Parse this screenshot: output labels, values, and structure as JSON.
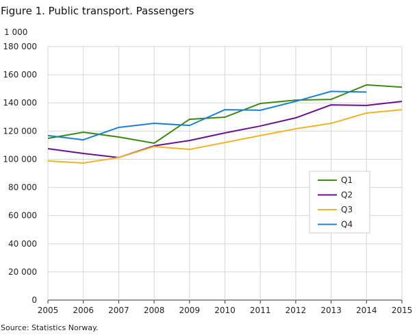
{
  "chart_data": {
    "type": "line",
    "title": "Figure 1. Public transport. Passengers",
    "unit_label": "1 000",
    "source": "Source: Statistics Norway.",
    "x": [
      2005,
      2006,
      2007,
      2008,
      2009,
      2010,
      2011,
      2012,
      2013,
      2014,
      2015
    ],
    "xlim": [
      2005,
      2015
    ],
    "ylim": [
      0,
      180000
    ],
    "yticks": [
      0,
      20000,
      40000,
      60000,
      80000,
      100000,
      120000,
      140000,
      160000,
      180000
    ],
    "ytick_labels": [
      "0",
      "20 000",
      "40 000",
      "60 000",
      "80 000",
      "100 000",
      "120 000",
      "140 000",
      "160 000",
      "180 000"
    ],
    "xtick_labels": [
      "2005",
      "2006",
      "2007",
      "2008",
      "2009",
      "2010",
      "2011",
      "2012",
      "2013",
      "2014",
      "2015"
    ],
    "grid": true,
    "legend_position": "right-middle",
    "series": [
      {
        "name": "Q1",
        "color": "#3a8a0f",
        "values": [
          114800,
          119200,
          115800,
          111400,
          128400,
          129900,
          139600,
          142000,
          142500,
          152800,
          151200
        ]
      },
      {
        "name": "Q2",
        "color": "#6a0f8e",
        "values": [
          107500,
          104100,
          101200,
          109500,
          113300,
          118700,
          123600,
          129400,
          138600,
          138200,
          141100
        ]
      },
      {
        "name": "Q3",
        "color": "#f0b323",
        "values": [
          98800,
          97300,
          101200,
          109000,
          107000,
          111900,
          116800,
          121600,
          125500,
          132800,
          135200
        ]
      },
      {
        "name": "Q4",
        "color": "#1a7fd4",
        "values": [
          116800,
          113800,
          122600,
          125500,
          124000,
          135200,
          134800,
          141100,
          148200,
          147700,
          null
        ]
      }
    ]
  }
}
